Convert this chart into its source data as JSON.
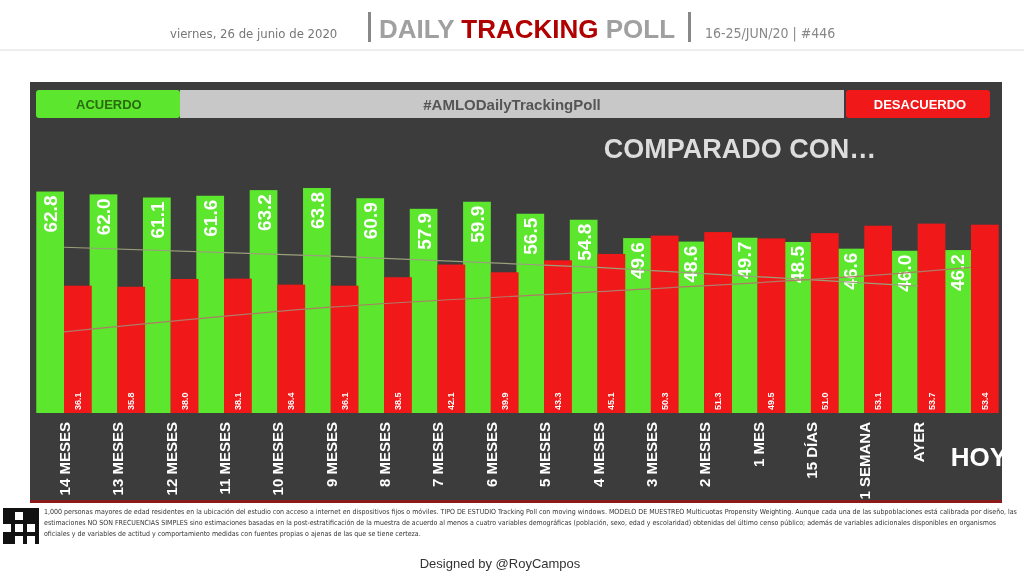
{
  "chart_data": {
    "type": "bar",
    "title": "DAILY TRACKING POLL",
    "subtitle": "viernes, 26 de junio de 2020",
    "annotations": [
      "16-25/JUN/20 | #446",
      "#AMLODailyTrackingPoll",
      "COMPARADO CON…",
      "1,000 personas mayores de edad residentes en la ubicación del estudio con acceso a internet en dispositivos fijos o móviles. TIPO DE ESTUDIO Tracking Poll con moving windows. MODELO DE MUESTREO Multicuotas Propensity Weighting. Aunque cada una de las subpoblaciones está calibrada por diseño, las estimaciones NO SON FRECUENCIAS SIMPLES sino estimaciones basadas en la post-estratificación de la muestra de acuerdo al menos a cuatro variables demográficas (población, sexo, edad y escolaridad) obtenidas del último censo público; además de variables adicionales disponibles en organismos oficiales y de variables de actitud y comportamiento medidas con fuentes propias o ajenas de las que se tiene certeza.",
      "Designed by @RoyCampos"
    ],
    "categories": [
      "14 MESES",
      "13 MESES",
      "12 MESES",
      "11 MESES",
      "10 MESES",
      "9 MESES",
      "8 MESES",
      "7 MESES",
      "6 MESES",
      "5 MESES",
      "4 MESES",
      "3 MESES",
      "2 MESES",
      "1 MES",
      "15 DÍAS",
      "1 SEMANA",
      "AYER",
      "HOY"
    ],
    "series": [
      {
        "name": "ACUERDO",
        "color": "#5ce62e",
        "values": [
          62.8,
          62.0,
          61.1,
          61.6,
          63.2,
          63.8,
          60.9,
          57.9,
          59.9,
          56.5,
          54.8,
          49.6,
          48.6,
          49.7,
          48.5,
          46.6,
          46.0,
          46.2
        ],
        "value_labels": [
          "62.8",
          "62.0",
          "61.1",
          "61.6",
          "63.2",
          "63.8",
          "60.9",
          "57.9",
          "59.9",
          "56.5",
          "54.8",
          "49.6",
          "48.6",
          "49.7",
          "48.5",
          "46.6",
          "46.0",
          "46.2"
        ]
      },
      {
        "name": "DESACUERDO",
        "color": "#f01818",
        "values": [
          36.1,
          35.8,
          38.0,
          38.1,
          36.4,
          36.1,
          38.5,
          42.1,
          39.9,
          43.3,
          45.1,
          50.3,
          51.3,
          49.5,
          51.0,
          53.1,
          53.7,
          53.4
        ],
        "value_labels": [
          "36.1",
          "35.8",
          "38.0",
          "38.1",
          "36.4",
          "36.1",
          "38.5",
          "42.1",
          "39.9",
          "43.3",
          "45.1",
          "50.3",
          "51.3",
          "49.5",
          "51.0",
          "53.1",
          "53.7",
          "53.4"
        ]
      },
      {
        "type": "line",
        "color": "#9aa07a",
        "values": [
          47,
          null,
          null,
          null,
          null,
          44.5,
          null,
          null,
          null,
          null,
          41.3,
          null,
          null,
          null,
          null,
          null,
          36,
          null
        ]
      },
      {
        "type": "line",
        "color": "#b07a68",
        "values": [
          23,
          null,
          null,
          null,
          null,
          30,
          null,
          null,
          null,
          null,
          34.4,
          null,
          null,
          null,
          null,
          null,
          40,
          41.3
        ]
      }
    ],
    "legend": "top",
    "tick_labels": "x"
  }
}
